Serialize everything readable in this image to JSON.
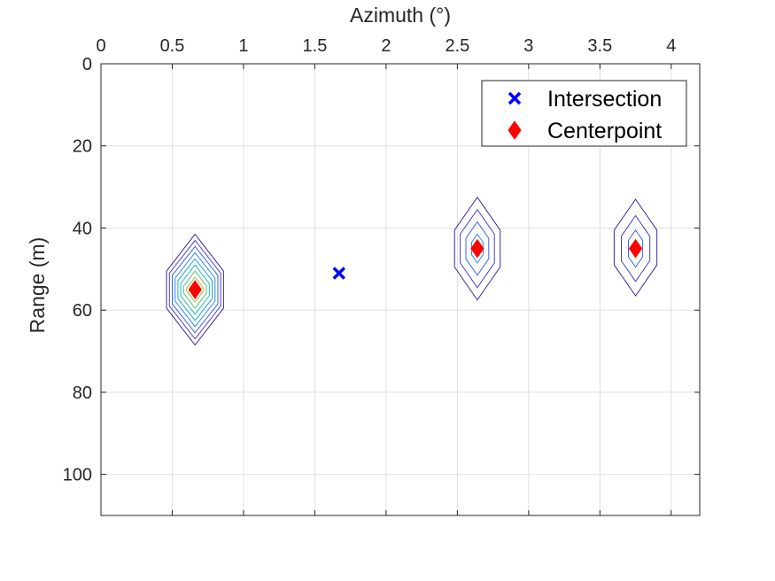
{
  "chart_data": {
    "type": "scatter",
    "xlabel": "Azimuth (°)",
    "ylabel": "Range (m)",
    "xlim": [
      0,
      4.2
    ],
    "ylim": [
      0,
      110
    ],
    "y_reversed": true,
    "x_axis_location": "top",
    "x_ticks": [
      0,
      0.5,
      1,
      1.5,
      2,
      2.5,
      3,
      3.5,
      4
    ],
    "x_tick_labels": [
      "0",
      "0.5",
      "1",
      "1.5",
      "2",
      "2.5",
      "3",
      "3.5",
      "4"
    ],
    "y_ticks": [
      0,
      20,
      40,
      60,
      80,
      100
    ],
    "y_tick_labels": [
      "0",
      "20",
      "40",
      "60",
      "80",
      "100"
    ],
    "grid": true,
    "legend_position": "top-right",
    "series": [
      {
        "name": "Intersection",
        "marker": "x",
        "color": "#0000ff",
        "points": [
          {
            "x": 1.67,
            "y": 51
          }
        ]
      },
      {
        "name": "Centerpoint",
        "marker": "diamond",
        "color": "#ff0000",
        "points": [
          {
            "x": 0.66,
            "y": 55
          },
          {
            "x": 2.64,
            "y": 45
          },
          {
            "x": 3.75,
            "y": 45
          }
        ]
      }
    ],
    "contours": [
      {
        "center": {
          "x": 0.66,
          "y": 55
        },
        "levels": [
          {
            "dx": 0.2,
            "y_top": 41.5,
            "y_bottom": 68.5,
            "shoulder": 9.0,
            "color": "#3d26a8"
          },
          {
            "dx": 0.18,
            "y_top": 43.0,
            "y_bottom": 67.0,
            "shoulder": 8.0,
            "color": "#4a3fcb"
          },
          {
            "dx": 0.16,
            "y_top": 44.5,
            "y_bottom": 65.5,
            "shoulder": 7.0,
            "color": "#3c63e6"
          },
          {
            "dx": 0.14,
            "y_top": 46.0,
            "y_bottom": 64.0,
            "shoulder": 6.2,
            "color": "#2b86f2"
          },
          {
            "dx": 0.12,
            "y_top": 47.5,
            "y_bottom": 62.5,
            "shoulder": 5.3,
            "color": "#1ea3d8"
          },
          {
            "dx": 0.1,
            "y_top": 49.0,
            "y_bottom": 61.0,
            "shoulder": 4.5,
            "color": "#1cb8b0"
          },
          {
            "dx": 0.08,
            "y_top": 50.5,
            "y_bottom": 59.5,
            "shoulder": 3.6,
            "color": "#54c279"
          },
          {
            "dx": 0.06,
            "y_top": 52.0,
            "y_bottom": 58.0,
            "shoulder": 2.7,
            "color": "#a6be50"
          },
          {
            "dx": 0.04,
            "y_top": 53.5,
            "y_bottom": 56.5,
            "shoulder": 1.8,
            "color": "#e7b53a"
          },
          {
            "dx": 0.02,
            "y_top": 54.5,
            "y_bottom": 55.5,
            "shoulder": 0.9,
            "color": "#f6dc2c"
          }
        ]
      },
      {
        "center": {
          "x": 2.64,
          "y": 45
        },
        "levels": [
          {
            "dx": 0.16,
            "y_top": 32.5,
            "y_bottom": 57.5,
            "shoulder": 8.0,
            "color": "#3d26a8"
          },
          {
            "dx": 0.12,
            "y_top": 35.5,
            "y_bottom": 54.5,
            "shoulder": 6.0,
            "color": "#4a3fcb"
          },
          {
            "dx": 0.08,
            "y_top": 38.5,
            "y_bottom": 51.5,
            "shoulder": 4.0,
            "color": "#3c63e6"
          },
          {
            "dx": 0.04,
            "y_top": 41.5,
            "y_bottom": 48.5,
            "shoulder": 2.0,
            "color": "#2b86f2"
          }
        ]
      },
      {
        "center": {
          "x": 3.75,
          "y": 45
        },
        "levels": [
          {
            "dx": 0.15,
            "y_top": 33.0,
            "y_bottom": 56.5,
            "shoulder": 7.5,
            "color": "#3d26a8"
          },
          {
            "dx": 0.1,
            "y_top": 37.0,
            "y_bottom": 53.0,
            "shoulder": 5.0,
            "color": "#4a3fcb"
          },
          {
            "dx": 0.05,
            "y_top": 40.5,
            "y_bottom": 49.5,
            "shoulder": 2.5,
            "color": "#3c63e6"
          }
        ]
      }
    ]
  }
}
